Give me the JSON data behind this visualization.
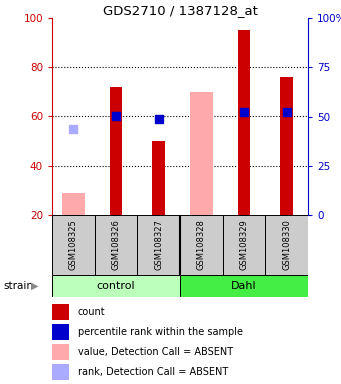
{
  "title": "GDS2710 / 1387128_at",
  "samples": [
    "GSM108325",
    "GSM108326",
    "GSM108327",
    "GSM108328",
    "GSM108329",
    "GSM108330"
  ],
  "bars_red": [
    null,
    72,
    50,
    null,
    95,
    76
  ],
  "bars_pink": [
    29,
    null,
    null,
    70,
    null,
    null
  ],
  "dots_blue": [
    null,
    60,
    59,
    null,
    62,
    62
  ],
  "dots_lavender": [
    55,
    null,
    null,
    null,
    null,
    null
  ],
  "ylim": [
    20,
    100
  ],
  "yticks_left": [
    20,
    40,
    60,
    80,
    100
  ],
  "yticks_right_labels": [
    "0",
    "25",
    "50",
    "75",
    "100%"
  ],
  "yticks_right_pos": [
    20,
    40,
    60,
    80,
    100
  ],
  "color_red": "#cc0000",
  "color_pink": "#ffaaaa",
  "color_blue": "#0000cc",
  "color_lavender": "#aaaaff",
  "color_left_axis": "#cc0000",
  "color_right_axis": "#0000cc",
  "legend_items": [
    {
      "label": "count",
      "color": "#cc0000"
    },
    {
      "label": "percentile rank within the sample",
      "color": "#0000cc"
    },
    {
      "label": "value, Detection Call = ABSENT",
      "color": "#ffaaaa"
    },
    {
      "label": "rank, Detection Call = ABSENT",
      "color": "#aaaaff"
    }
  ],
  "gray_box_color": "#cccccc",
  "control_bg": "#bbffbb",
  "dahl_bg": "#44ee44",
  "control_label": "control",
  "dahl_label": "Dahl",
  "strain_label": "strain"
}
